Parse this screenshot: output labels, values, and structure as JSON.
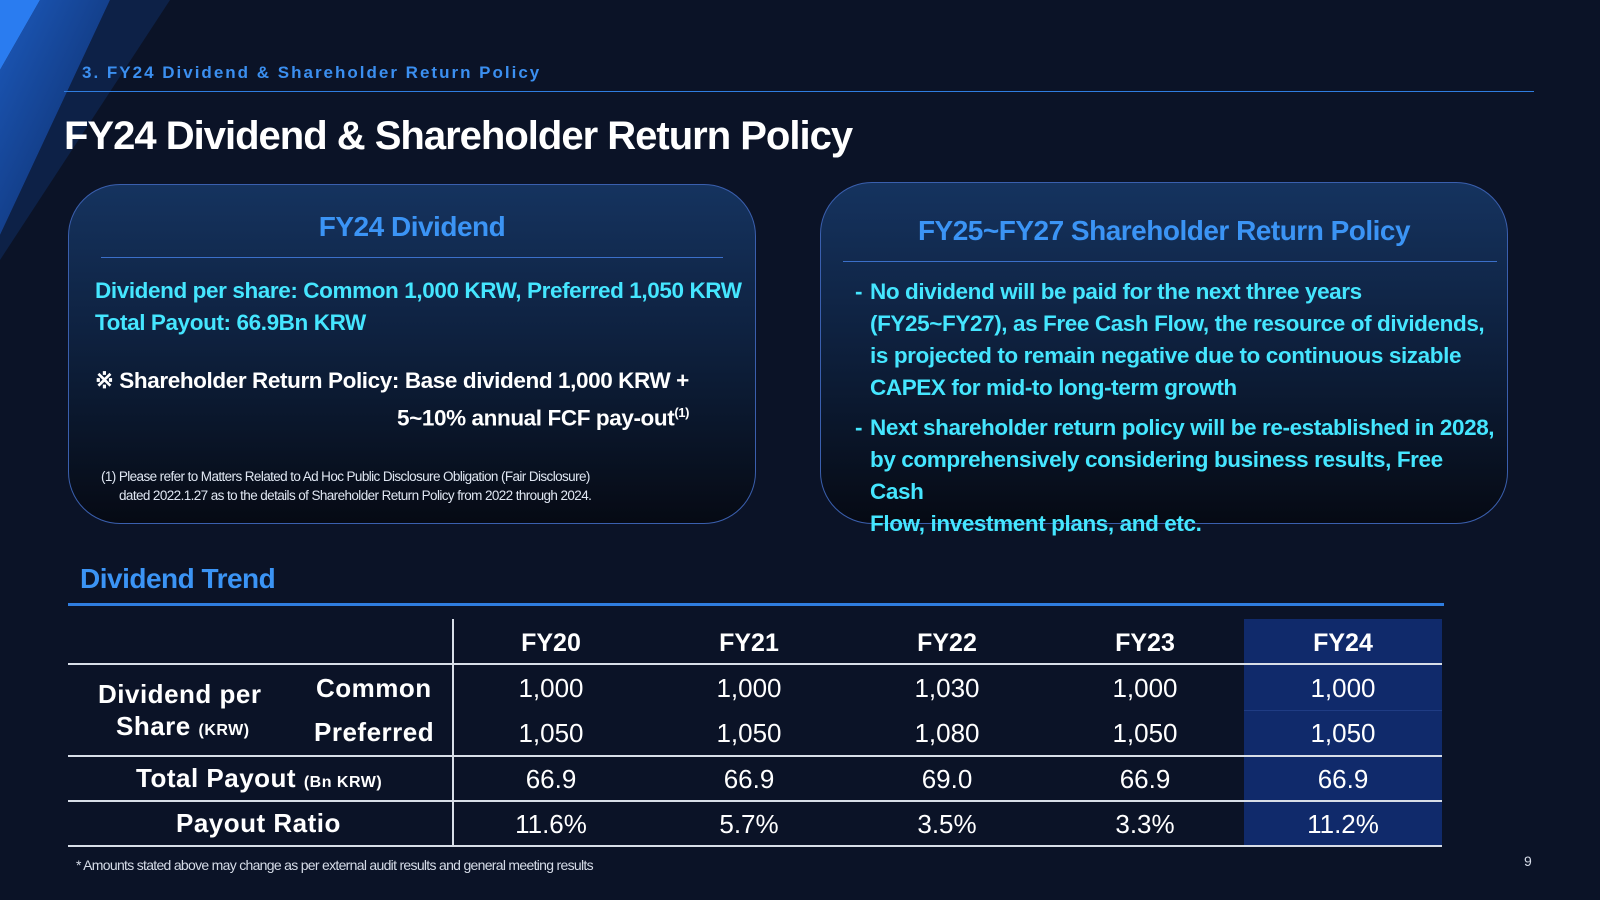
{
  "header": {
    "section_label": "3. FY24 Dividend & Shareholder Return Policy",
    "title": "FY24 Dividend & Shareholder Return Policy"
  },
  "left_panel": {
    "title": "FY24 Dividend",
    "line1": "Dividend per share: Common 1,000 KRW, Preferred 1,050 KRW",
    "line2": "Total Payout: 66.9Bn KRW",
    "policy_line1": "※ Shareholder Return Policy: Base dividend 1,000 KRW +",
    "policy_line2": "5~10% annual FCF pay-out",
    "policy_sup": "(1)",
    "note_line1": "(1) Please refer to Matters Related to Ad Hoc Public Disclosure Obligation (Fair Disclosure)",
    "note_line2": "dated 2022.1.27 as to the details of Shareholder Return Policy from 2022 through 2024."
  },
  "right_panel": {
    "title": "FY25~FY27 Shareholder Return Policy",
    "bullets": [
      {
        "dash": "-",
        "lines": [
          "No dividend will be paid for the next three years",
          "(FY25~FY27), as Free Cash Flow, the resource of dividends,",
          "is projected to remain negative due to continuous sizable",
          "CAPEX for mid-to long-term growth"
        ]
      },
      {
        "dash": "-",
        "lines": [
          "Next shareholder return policy will be re-established in 2028,",
          "by comprehensively considering business results, Free Cash",
          "Flow, investment plans, and etc."
        ]
      }
    ]
  },
  "trend": {
    "title": "Dividend Trend",
    "years": [
      "FY20",
      "FY21",
      "FY22",
      "FY23",
      "FY24"
    ],
    "dps_label_line1": "Dividend per",
    "dps_label_line2": "Share",
    "dps_unit": "(KRW)",
    "common_label": "Common",
    "preferred_label": "Preferred",
    "payout_label": "Total Payout",
    "payout_unit": "(Bn KRW)",
    "ratio_label": "Payout Ratio",
    "common": [
      "1,000",
      "1,000",
      "1,030",
      "1,000",
      "1,000"
    ],
    "preferred": [
      "1,050",
      "1,050",
      "1,080",
      "1,050",
      "1,050"
    ],
    "payout": [
      "66.9",
      "66.9",
      "69.0",
      "66.9",
      "66.9"
    ],
    "ratio": [
      "11.6%",
      "5.7%",
      "3.5%",
      "3.3%",
      "11.2%"
    ],
    "highlight_color": "#102a6b"
  },
  "footnote": "* Amounts stated above may change as per external audit results and general meeting results",
  "page_number": "9"
}
